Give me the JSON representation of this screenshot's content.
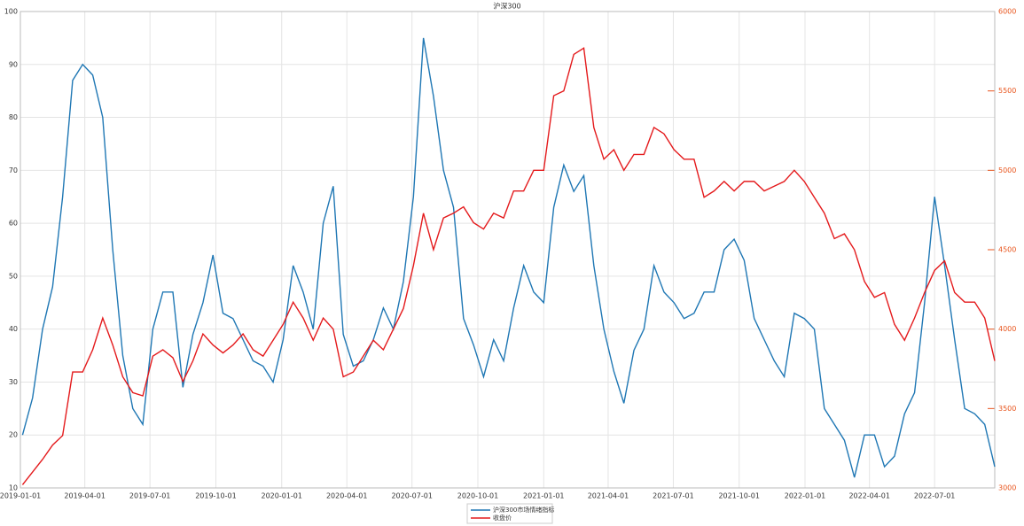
{
  "chart_data": {
    "type": "line",
    "title": "沪深300",
    "x": [
      "2019-01-04",
      "2019-01-18",
      "2019-02-01",
      "2019-02-15",
      "2019-03-01",
      "2019-03-15",
      "2019-03-29",
      "2019-04-12",
      "2019-04-26",
      "2019-05-10",
      "2019-05-24",
      "2019-06-07",
      "2019-06-21",
      "2019-07-05",
      "2019-07-19",
      "2019-08-02",
      "2019-08-16",
      "2019-08-30",
      "2019-09-13",
      "2019-09-27",
      "2019-10-11",
      "2019-10-25",
      "2019-11-08",
      "2019-11-22",
      "2019-12-06",
      "2019-12-20",
      "2020-01-03",
      "2020-01-17",
      "2020-01-31",
      "2020-02-14",
      "2020-02-28",
      "2020-03-13",
      "2020-03-27",
      "2020-04-10",
      "2020-04-24",
      "2020-05-08",
      "2020-05-22",
      "2020-06-05",
      "2020-06-19",
      "2020-07-03",
      "2020-07-17",
      "2020-07-31",
      "2020-08-14",
      "2020-08-28",
      "2020-09-11",
      "2020-09-25",
      "2020-10-09",
      "2020-10-23",
      "2020-11-06",
      "2020-11-20",
      "2020-12-04",
      "2020-12-18",
      "2021-01-01",
      "2021-01-15",
      "2021-01-29",
      "2021-02-12",
      "2021-02-26",
      "2021-03-12",
      "2021-03-26",
      "2021-04-09",
      "2021-04-23",
      "2021-05-07",
      "2021-05-21",
      "2021-06-04",
      "2021-06-18",
      "2021-07-02",
      "2021-07-16",
      "2021-07-30",
      "2021-08-13",
      "2021-08-27",
      "2021-09-10",
      "2021-09-24",
      "2021-10-08",
      "2021-10-22",
      "2021-11-05",
      "2021-11-19",
      "2021-12-03",
      "2021-12-17",
      "2021-12-31",
      "2022-01-14",
      "2022-01-28",
      "2022-02-11",
      "2022-02-25",
      "2022-03-11",
      "2022-03-25",
      "2022-04-08",
      "2022-04-22",
      "2022-05-06",
      "2022-05-20",
      "2022-06-03",
      "2022-06-17",
      "2022-07-01",
      "2022-07-15",
      "2022-07-29",
      "2022-08-12",
      "2022-08-26",
      "2022-09-09",
      "2022-09-23"
    ],
    "xlim": [
      "2019-01-01",
      "2022-09-23"
    ],
    "xticks": [
      "2019-01-01",
      "2019-04-01",
      "2019-07-01",
      "2019-10-01",
      "2020-01-01",
      "2020-04-01",
      "2020-07-01",
      "2020-10-01",
      "2021-01-01",
      "2021-04-01",
      "2021-07-01",
      "2021-10-01",
      "2022-01-01",
      "2022-04-01",
      "2022-07-01"
    ],
    "ylim": [
      10,
      100
    ],
    "yticks": [
      10,
      20,
      30,
      40,
      50,
      60,
      70,
      80,
      90,
      100
    ],
    "y2lim": [
      3000,
      6000
    ],
    "y2ticks": [
      3000,
      3500,
      4000,
      4500,
      5000,
      5500,
      6000
    ],
    "y2color": "#e8541c",
    "grid": true,
    "series": [
      {
        "name": "沪深300市场情绪指标",
        "color": "#1f77b4",
        "values": [
          20,
          27,
          40,
          48,
          65,
          87,
          90,
          88,
          80,
          55,
          35,
          25,
          22,
          40,
          47,
          47,
          29,
          39,
          45,
          54,
          43,
          42,
          38,
          34,
          33,
          30,
          38,
          52,
          47,
          40,
          60,
          67,
          39,
          33,
          34,
          38,
          44,
          40,
          49,
          65,
          95,
          84,
          70,
          63,
          42,
          37,
          31,
          38,
          34,
          44,
          52,
          47,
          45,
          63,
          71,
          66,
          69,
          52,
          40,
          32,
          26,
          36,
          40,
          52,
          47,
          45,
          42,
          43,
          47,
          47,
          55,
          57,
          53,
          42,
          38,
          34,
          31,
          43,
          42,
          40,
          25,
          22,
          19,
          12,
          20,
          20,
          14,
          16,
          24,
          28,
          45,
          65,
          52,
          38,
          25,
          24,
          22,
          14
        ]
      },
      {
        "name": "收盘价",
        "color": "#e41a1c",
        "axis": "y2",
        "values": [
          3020,
          3100,
          3180,
          3270,
          3330,
          3730,
          3730,
          3870,
          4070,
          3900,
          3700,
          3600,
          3580,
          3830,
          3870,
          3820,
          3670,
          3800,
          3970,
          3900,
          3850,
          3900,
          3970,
          3870,
          3830,
          3930,
          4030,
          4170,
          4070,
          3930,
          4070,
          4000,
          3700,
          3730,
          3830,
          3930,
          3870,
          4000,
          4130,
          4400,
          4730,
          4500,
          4700,
          4730,
          4770,
          4670,
          4630,
          4730,
          4700,
          4870,
          4870,
          5000,
          5000,
          5470,
          5500,
          5730,
          5770,
          5270,
          5070,
          5130,
          5000,
          5100,
          5100,
          5270,
          5230,
          5130,
          5070,
          5070,
          4830,
          4870,
          4930,
          4870,
          4930,
          4930,
          4870,
          4900,
          4930,
          5000,
          4930,
          4830,
          4730,
          4570,
          4600,
          4500,
          4300,
          4200,
          4230,
          4030,
          3930,
          4070,
          4230,
          4370,
          4430,
          4230,
          4170,
          4170,
          4070,
          3800
        ]
      }
    ]
  }
}
